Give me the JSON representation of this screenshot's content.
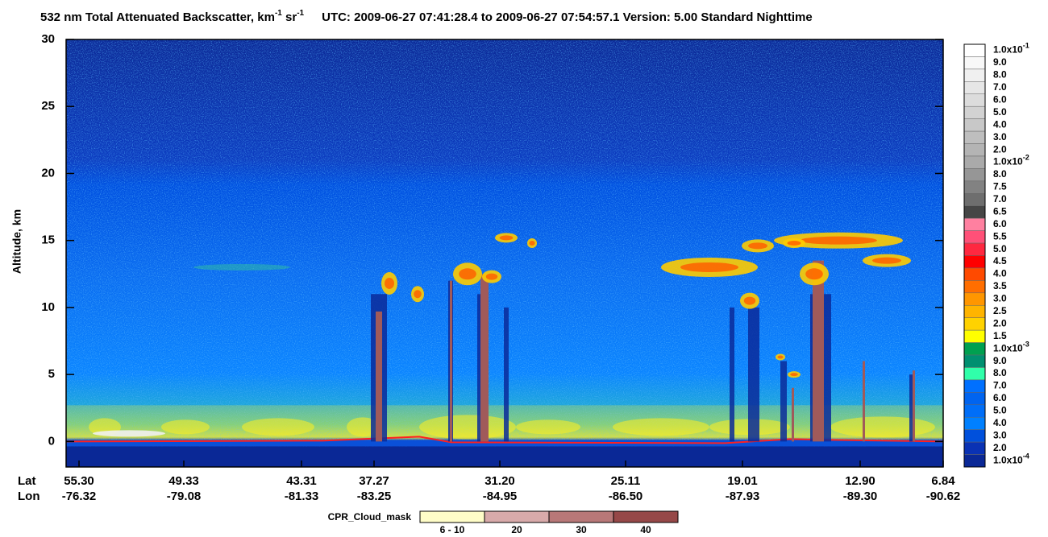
{
  "chart_data": {
    "type": "curtain",
    "title_parts": [
      "532 nm Total Attenuated Backscatter, km",
      "-1",
      " sr",
      "-1",
      "UTC:  2009-06-27 07:41:28.4  to  2009-06-27 07:54:57.1    Version: 5.00  Standard  Nighttime"
    ],
    "y_label": "Altitude, km",
    "ylim": [
      -1.9,
      30
    ],
    "yticks": [
      0,
      5,
      10,
      15,
      20,
      25,
      30
    ],
    "lat_title": "Lat",
    "lon_title": "Lon",
    "lat_labels": [
      "55.30",
      "49.33",
      "43.31",
      "37.27",
      "31.20",
      "25.11",
      "19.01",
      "12.90",
      "6.84"
    ],
    "lon_labels": [
      "-76.32",
      "-79.08",
      "-81.33",
      "-83.25",
      "-84.95",
      "-86.50",
      "-87.93",
      "-89.30",
      "-90.62"
    ],
    "colorbar": [
      {
        "value": 0.1,
        "label": "1.0x10",
        "exponent": "-1"
      },
      {
        "value": 0.09,
        "label": "9.0"
      },
      {
        "value": 0.08,
        "label": "8.0"
      },
      {
        "value": 0.07,
        "label": "7.0"
      },
      {
        "value": 0.06,
        "label": "6.0"
      },
      {
        "value": 0.05,
        "label": "5.0"
      },
      {
        "value": 0.04,
        "label": "4.0"
      },
      {
        "value": 0.03,
        "label": "3.0"
      },
      {
        "value": 0.02,
        "label": "2.0"
      },
      {
        "value": 0.01,
        "label": "1.0x10",
        "exponent": "-2"
      },
      {
        "value": 0.008,
        "label": "8.0"
      },
      {
        "value": 0.0075,
        "label": "7.5"
      },
      {
        "value": 0.007,
        "label": "7.0"
      },
      {
        "value": 0.0065,
        "label": "6.5"
      },
      {
        "value": 0.006,
        "label": "6.0"
      },
      {
        "value": 0.0055,
        "label": "5.5"
      },
      {
        "value": 0.005,
        "label": "5.0"
      },
      {
        "value": 0.0045,
        "label": "4.5"
      },
      {
        "value": 0.004,
        "label": "4.0"
      },
      {
        "value": 0.0035,
        "label": "3.5"
      },
      {
        "value": 0.003,
        "label": "3.0"
      },
      {
        "value": 0.0025,
        "label": "2.5"
      },
      {
        "value": 0.002,
        "label": "2.0"
      },
      {
        "value": 0.0015,
        "label": "1.5"
      },
      {
        "value": 0.001,
        "label": "1.0x10",
        "exponent": "-3"
      },
      {
        "value": 0.0009,
        "label": "9.0"
      },
      {
        "value": 0.0008,
        "label": "8.0"
      },
      {
        "value": 0.0007,
        "label": "7.0"
      },
      {
        "value": 0.0006,
        "label": "6.0"
      },
      {
        "value": 0.0005,
        "label": "5.0"
      },
      {
        "value": 0.0004,
        "label": "4.0"
      },
      {
        "value": 0.0003,
        "label": "3.0"
      },
      {
        "value": 0.0002,
        "label": "2.0"
      },
      {
        "value": 0.0001,
        "label": "1.0x10",
        "exponent": "-4"
      }
    ],
    "colorbar_colors": [
      "#ffffff",
      "#f8f8f8",
      "#f0f0f0",
      "#e6e6e6",
      "#dcdcdc",
      "#d2d2d2",
      "#c8c8c8",
      "#bebebe",
      "#b4b4b4",
      "#aaaaaa",
      "#969696",
      "#828282",
      "#6e6e6e",
      "#464646",
      "#ff80a0",
      "#ff5078",
      "#ff2840",
      "#ff0000",
      "#ff4a00",
      "#ff6e00",
      "#ff9600",
      "#ffb400",
      "#ffd200",
      "#ffff00",
      "#00a050",
      "#009070",
      "#30ffaa",
      "#0070ff",
      "#0064f0",
      "#006ef8",
      "#0080ff",
      "#0050dc",
      "#0a32b4",
      "#0a2896"
    ],
    "cpr_title": "CPR_Cloud_mask",
    "cpr_labels": [
      "6 - 10",
      "20",
      "30",
      "40"
    ],
    "cpr_colors": [
      "#fffdc8",
      "#d8aaaa",
      "#b87878",
      "#964848"
    ]
  }
}
